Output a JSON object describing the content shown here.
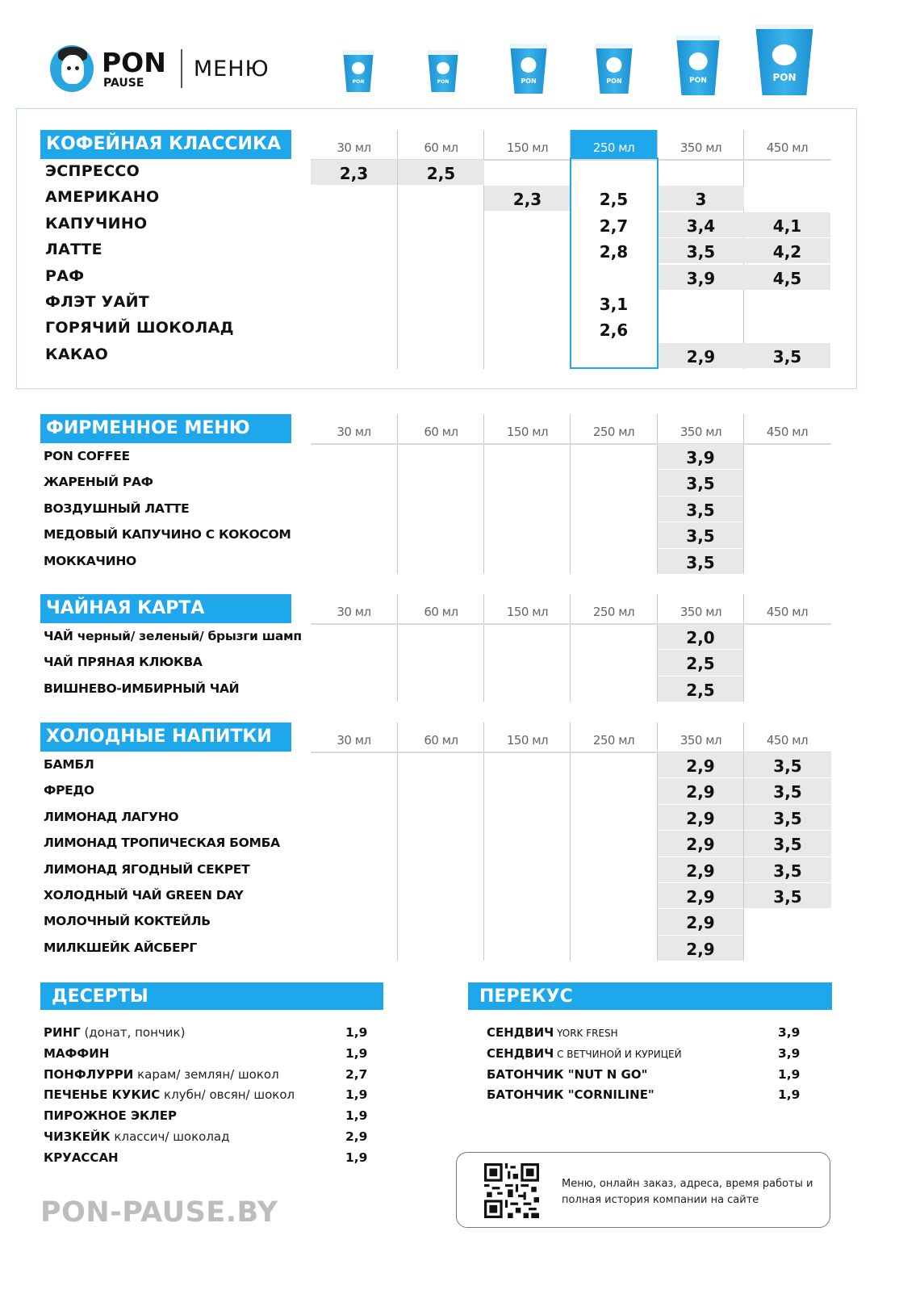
{
  "header": {
    "brand_pon": "PON",
    "brand_pause": "PAUSE",
    "menu_title": "МЕНЮ",
    "cup_label_top": "PON",
    "cup_label_bottom": "PAUSE"
  },
  "sizes": [
    "30 мл",
    "60 мл",
    "150 мл",
    "250 мл",
    "350 мл",
    "450 мл"
  ],
  "classic": {
    "title": "КОФЕЙНАЯ КЛАССИКА",
    "items": [
      {
        "name": "ЭСПРЕССО",
        "prices": [
          "2,3",
          "2,5",
          "",
          "",
          "",
          ""
        ]
      },
      {
        "name": "АМЕРИКАНО",
        "prices": [
          "",
          "",
          "2,3",
          "2,5",
          "3",
          ""
        ]
      },
      {
        "name": "КАПУЧИНО",
        "prices": [
          "",
          "",
          "",
          "2,7",
          "3,4",
          "4,1"
        ]
      },
      {
        "name": "ЛАТТЕ",
        "prices": [
          "",
          "",
          "",
          "2,8",
          "3,5",
          "4,2"
        ]
      },
      {
        "name": "РАФ",
        "prices": [
          "",
          "",
          "",
          "",
          "3,9",
          "4,5"
        ]
      },
      {
        "name": "ФЛЭТ УАЙТ",
        "prices": [
          "",
          "",
          "",
          "3,1",
          "",
          ""
        ]
      },
      {
        "name": "ГОРЯЧИЙ ШОКОЛАД",
        "prices": [
          "",
          "",
          "",
          "2,6",
          "",
          ""
        ]
      },
      {
        "name": "КАКАО",
        "prices": [
          "",
          "",
          "",
          "",
          "2,9",
          "3,5"
        ]
      }
    ]
  },
  "signature": {
    "title": "ФИРМЕННОЕ МЕНЮ",
    "items": [
      {
        "name": "PON COFFEE",
        "price_350": "3,9"
      },
      {
        "name": "ЖАРЕНЫЙ РАФ",
        "price_350": "3,5"
      },
      {
        "name": "ВОЗДУШНЫЙ ЛАТТЕ",
        "price_350": "3,5"
      },
      {
        "name": "МЕДОВЫЙ КАПУЧИНО С КОКОСОМ",
        "price_350": "3,5"
      },
      {
        "name": "МОККАЧИНО",
        "price_350": "3,5"
      }
    ]
  },
  "tea": {
    "title": "ЧАЙНАЯ КАРТА",
    "items": [
      {
        "name": "ЧАЙ черный/ зеленый/ брызги шамп",
        "price_350": "2,0"
      },
      {
        "name": "ЧАЙ ПРЯНАЯ КЛЮКВА",
        "price_350": "2,5"
      },
      {
        "name": "ВИШНЕВО-ИМБИРНЫЙ ЧАЙ",
        "price_350": "2,5"
      }
    ]
  },
  "cold": {
    "title": "ХОЛОДНЫЕ НАПИТКИ",
    "items": [
      {
        "name": "БАМБЛ",
        "price_350": "2,9",
        "price_450": "3,5"
      },
      {
        "name": "ФРЕДО",
        "price_350": "2,9",
        "price_450": "3,5"
      },
      {
        "name": "ЛИМОНАД ЛАГУНО",
        "price_350": "2,9",
        "price_450": "3,5"
      },
      {
        "name": "ЛИМОНАД ТРОПИЧЕСКАЯ БОМБА",
        "price_350": "2,9",
        "price_450": "3,5"
      },
      {
        "name": "ЛИМОНАД ЯГОДНЫЙ СЕКРЕТ",
        "price_350": "2,9",
        "price_450": "3,5"
      },
      {
        "name": "ХОЛОДНЫЙ ЧАЙ GREEN DAY",
        "price_350": "2,9",
        "price_450": "3,5"
      },
      {
        "name": "МОЛОЧНЫЙ КОКТЕЙЛЬ",
        "price_350": "2,9",
        "price_450": ""
      },
      {
        "name": "МИЛКШЕЙК АЙСБЕРГ",
        "price_350": "2,9",
        "price_450": ""
      }
    ]
  },
  "desserts": {
    "title": "ДЕСЕРТЫ",
    "items": [
      {
        "name": "РИНГ",
        "mod": " (донат, пончик)",
        "price": "1,9"
      },
      {
        "name": "МАФФИН",
        "mod": "",
        "price": "1,9"
      },
      {
        "name": "ПОНФЛУРРИ",
        "mod": " карам/ землян/ шокол",
        "price": "2,7"
      },
      {
        "name": "ПЕЧЕНЬЕ КУКИС",
        "mod": " клубн/ овсян/ шокол",
        "price": "1,9"
      },
      {
        "name": "ПИРОЖНОЕ ЭКЛЕР",
        "mod": "",
        "price": "1,9"
      },
      {
        "name": "ЧИЗКЕЙК",
        "mod": " классич/ шоколад",
        "price": "2,9"
      },
      {
        "name": "КРУАССАН",
        "mod": "",
        "price": "1,9"
      }
    ]
  },
  "snacks": {
    "title": "ПЕРЕКУС",
    "items": [
      {
        "name": "СЕНДВИЧ",
        "mod": " YORK FRESH",
        "price": "3,9"
      },
      {
        "name": "СЕНДВИЧ",
        "mod": " С ВЕТЧИНОЙ И КУРИЦЕЙ",
        "price": "3,9"
      },
      {
        "name": "БАТОНЧИК \"NUT N GO\"",
        "mod": "",
        "price": "1,9"
      },
      {
        "name": "БАТОНЧИК \"CORNILINE\"",
        "mod": "",
        "price": "1,9"
      }
    ]
  },
  "footer": {
    "site": "PON-PAUSE.BY",
    "qr_line1": "Меню, онлайн заказ, адреса, время работы и",
    "qr_line2": "полная история компании на сайте"
  },
  "colors": {
    "accent": "#1ea7ea",
    "cell_bg": "#e8e8e8",
    "site_gray": "#bdbdbd"
  }
}
